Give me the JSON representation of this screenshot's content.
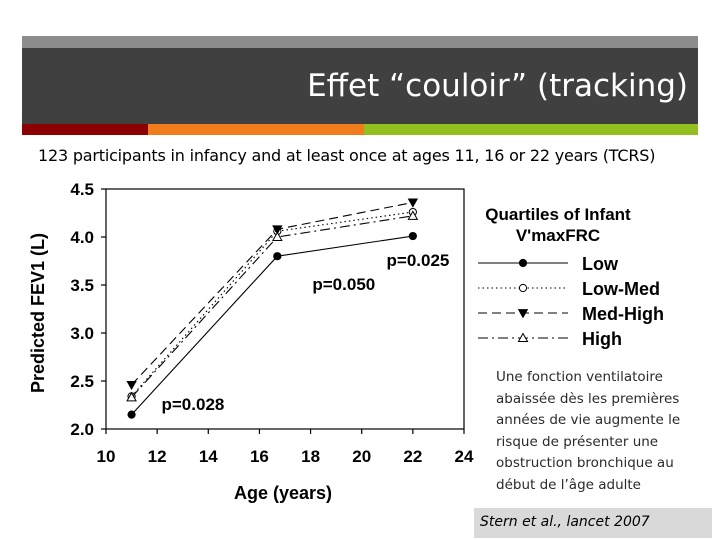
{
  "slide": {
    "title": "Effet “couloir” (tracking)",
    "subtitle": "123 participants in infancy and at least once at ages 11, 16 or 22 years (TCRS)",
    "note": "Une fonction ventilatoire abaissée dès les premières années de vie augmente le risque de présenter une obstruction bronchique au début de l’âge adulte",
    "citation": "Stern et al., lancet 2007",
    "colors": {
      "title_bar": "#404040",
      "top_strip": "#8c8c8c",
      "accent_red": "#8b0000",
      "accent_orange": "#f07c1c",
      "accent_green": "#92c01f"
    }
  },
  "chart_data": {
    "type": "line",
    "xlabel": "Age (years)",
    "ylabel": "Predicted FEV1 (L)",
    "xlim": [
      10,
      24
    ],
    "ylim": [
      2.0,
      4.5
    ],
    "xticks": [
      "10",
      "12",
      "14",
      "16",
      "18",
      "20",
      "22",
      "24"
    ],
    "yticks": [
      "2.0",
      "2.5",
      "3.0",
      "3.5",
      "4.0",
      "4.5"
    ],
    "x": [
      11,
      16.7,
      22
    ],
    "legend_title": "Quartiles of Infant V'maxFRC",
    "legend_position": "right",
    "series": [
      {
        "name": "Low",
        "values": [
          2.15,
          3.8,
          4.01
        ],
        "line": "solid",
        "marker": "filled-circle"
      },
      {
        "name": "Low-Med",
        "values": [
          2.34,
          4.06,
          4.26
        ],
        "line": "dotted",
        "marker": "open-circle"
      },
      {
        "name": "Med-High",
        "values": [
          2.46,
          4.08,
          4.36
        ],
        "line": "dashed",
        "marker": "filled-triangle-down"
      },
      {
        "name": "High",
        "values": [
          2.33,
          4.0,
          4.22
        ],
        "line": "dash-dot",
        "marker": "open-triangle-up"
      }
    ],
    "annotations": [
      {
        "text": "p=0.028",
        "x": 13.4,
        "y": 2.2
      },
      {
        "text": "p=0.050",
        "x": 19.3,
        "y": 3.45
      },
      {
        "text": "p=0.025",
        "x": 22.2,
        "y": 3.7
      }
    ]
  }
}
